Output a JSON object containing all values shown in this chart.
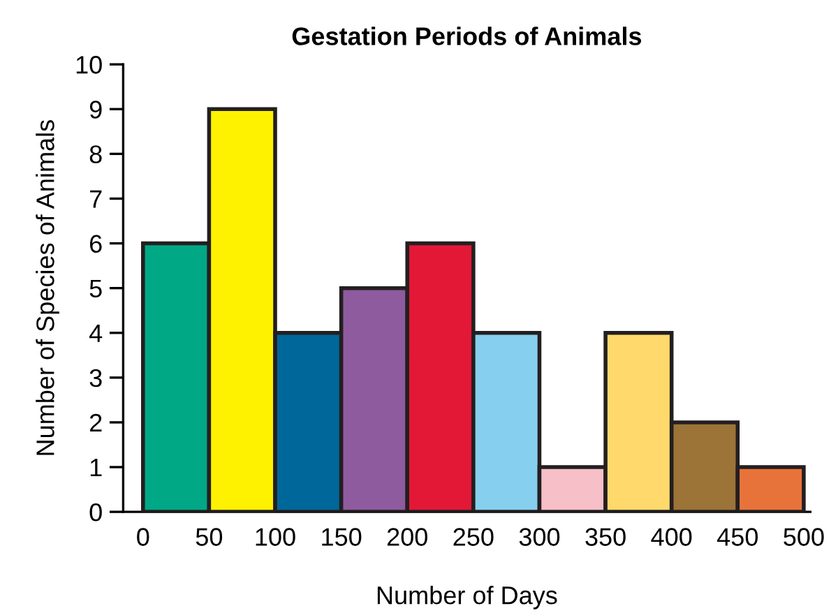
{
  "chart_data": {
    "type": "histogram",
    "title": "Gestation Periods of Animals",
    "xlabel": "Number of Days",
    "ylabel": "Number of Species of Animals",
    "bins": [
      0,
      50,
      100,
      150,
      200,
      250,
      300,
      350,
      400,
      450,
      500
    ],
    "values": [
      6,
      9,
      4,
      5,
      6,
      4,
      1,
      4,
      2,
      1
    ],
    "colors": [
      "#00a885",
      "#fff200",
      "#00679a",
      "#8e5b9e",
      "#e31837",
      "#87cfee",
      "#f7bfc8",
      "#ffd96b",
      "#9c7438",
      "#e8733a"
    ],
    "xlim": [
      -15,
      505
    ],
    "ylim": [
      0,
      10
    ],
    "xticks": [
      0,
      50,
      100,
      150,
      200,
      250,
      300,
      350,
      400,
      450,
      500
    ],
    "yticks": [
      0,
      1,
      2,
      3,
      4,
      5,
      6,
      7,
      8,
      9,
      10
    ],
    "grid": false
  }
}
